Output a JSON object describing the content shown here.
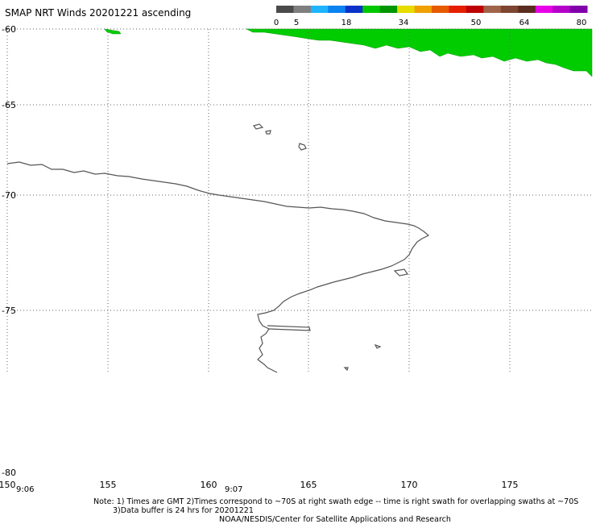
{
  "title": "SMAP NRT Winds 20201221 ascending",
  "colorbar": {
    "labels": [
      "0",
      "5",
      "18",
      "34",
      "50",
      "64",
      "80"
    ],
    "segments": [
      "#4a4a4a",
      "#7f7f7f",
      "#1fb4ff",
      "#0a82f0",
      "#0a32c8",
      "#00c800",
      "#009600",
      "#e6dc00",
      "#f0a000",
      "#e65a00",
      "#e61e00",
      "#be0000",
      "#a0644b",
      "#7d4632",
      "#5a2d1e",
      "#e600e6",
      "#b400c8",
      "#8200aa"
    ]
  },
  "lat_labels": [
    "-60",
    "-65",
    "-70",
    "-75",
    "-80"
  ],
  "lon_labels": [
    "150",
    "155",
    "160",
    "165",
    "170",
    "175"
  ],
  "swath_times": [
    "9:06",
    "9:07"
  ],
  "colors": {
    "wind_swath": "#00cc00",
    "coastline": "#555555",
    "grid": "#666666"
  },
  "notes": {
    "line1": "Note: 1) Times are GMT 2)Times correspond to ~70S at right swath edge -- time is right swath for overlapping swaths at ~70S",
    "line2": "3)Data buffer is 24 hrs for 20201221",
    "line3": "NOAA/NESDIS/Center for Satellite Applications and Research"
  }
}
